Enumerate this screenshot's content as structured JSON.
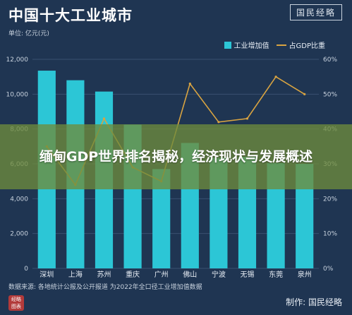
{
  "header": {
    "title": "中国十大工业城市",
    "brand": "国民经略",
    "unit_note": "单位: 亿元(元)"
  },
  "legend": {
    "bar_label": "工业增加值",
    "line_label": "占GDP比重"
  },
  "banner": {
    "text": "缅甸GDP世界排名揭秘，经济现状与发展概述"
  },
  "footer": {
    "source": "数据来源: 各地统计公报及公开报道 为2022年全口径工业增加值数据",
    "made_by": "制作: 国民经略",
    "seal_text": "经略 图表"
  },
  "colors": {
    "bar": "#2cc6d6",
    "line": "#d9a441",
    "background": "#1f3552",
    "grid": "#3a5170"
  },
  "chart_data": {
    "type": "bar",
    "categories": [
      "深圳",
      "上海",
      "苏州",
      "重庆",
      "广州",
      "佛山",
      "宁波",
      "无锡",
      "东莞",
      "泉州"
    ],
    "series": [
      {
        "name": "工业增加值",
        "type": "bar",
        "axis": "left",
        "values": [
          11350,
          10800,
          10150,
          8250,
          5700,
          7200,
          6350,
          6400,
          6050,
          6000
        ]
      },
      {
        "name": "占GDP比重",
        "type": "line",
        "axis": "right",
        "values": [
          35,
          24,
          43,
          29,
          25,
          53,
          42,
          43,
          55,
          50
        ]
      }
    ],
    "y_left": {
      "min": 0,
      "max": 12000,
      "ticks": [
        "0",
        "2,000",
        "4,000",
        "6,000",
        "8,000",
        "10,000",
        "12,000"
      ]
    },
    "y_right": {
      "min": 0,
      "max": 60,
      "ticks": [
        "0%",
        "10%",
        "20%",
        "30%",
        "40%",
        "50%",
        "60%"
      ]
    },
    "grid": true,
    "legend_position": "top-right"
  }
}
